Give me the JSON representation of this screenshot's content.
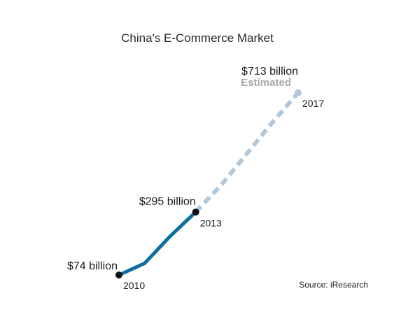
{
  "chart_data": {
    "type": "line",
    "title": "China's E-Commerce Market",
    "source": "Source: iResearch",
    "series": [
      {
        "style": "actual",
        "color": "#0a6e9e",
        "x": [
          2010,
          2011,
          2012,
          2013
        ],
        "y": [
          74,
          115,
          210,
          295
        ]
      },
      {
        "name": "Estimated",
        "style": "estimated",
        "color": "#b3c6d9",
        "x": [
          2013,
          2014,
          2015,
          2016,
          2017
        ],
        "y": [
          295,
          390,
          500,
          610,
          713
        ]
      }
    ],
    "point_labels": [
      {
        "x": 2010,
        "y": 74,
        "value_text": "$74 billion",
        "year_text": "2010"
      },
      {
        "x": 2013,
        "y": 295,
        "value_text": "$295 billion",
        "year_text": "2013"
      },
      {
        "x": 2017,
        "y": 713,
        "value_text": "$713 billion",
        "year_text": "2017",
        "note": "Estimated"
      }
    ]
  }
}
